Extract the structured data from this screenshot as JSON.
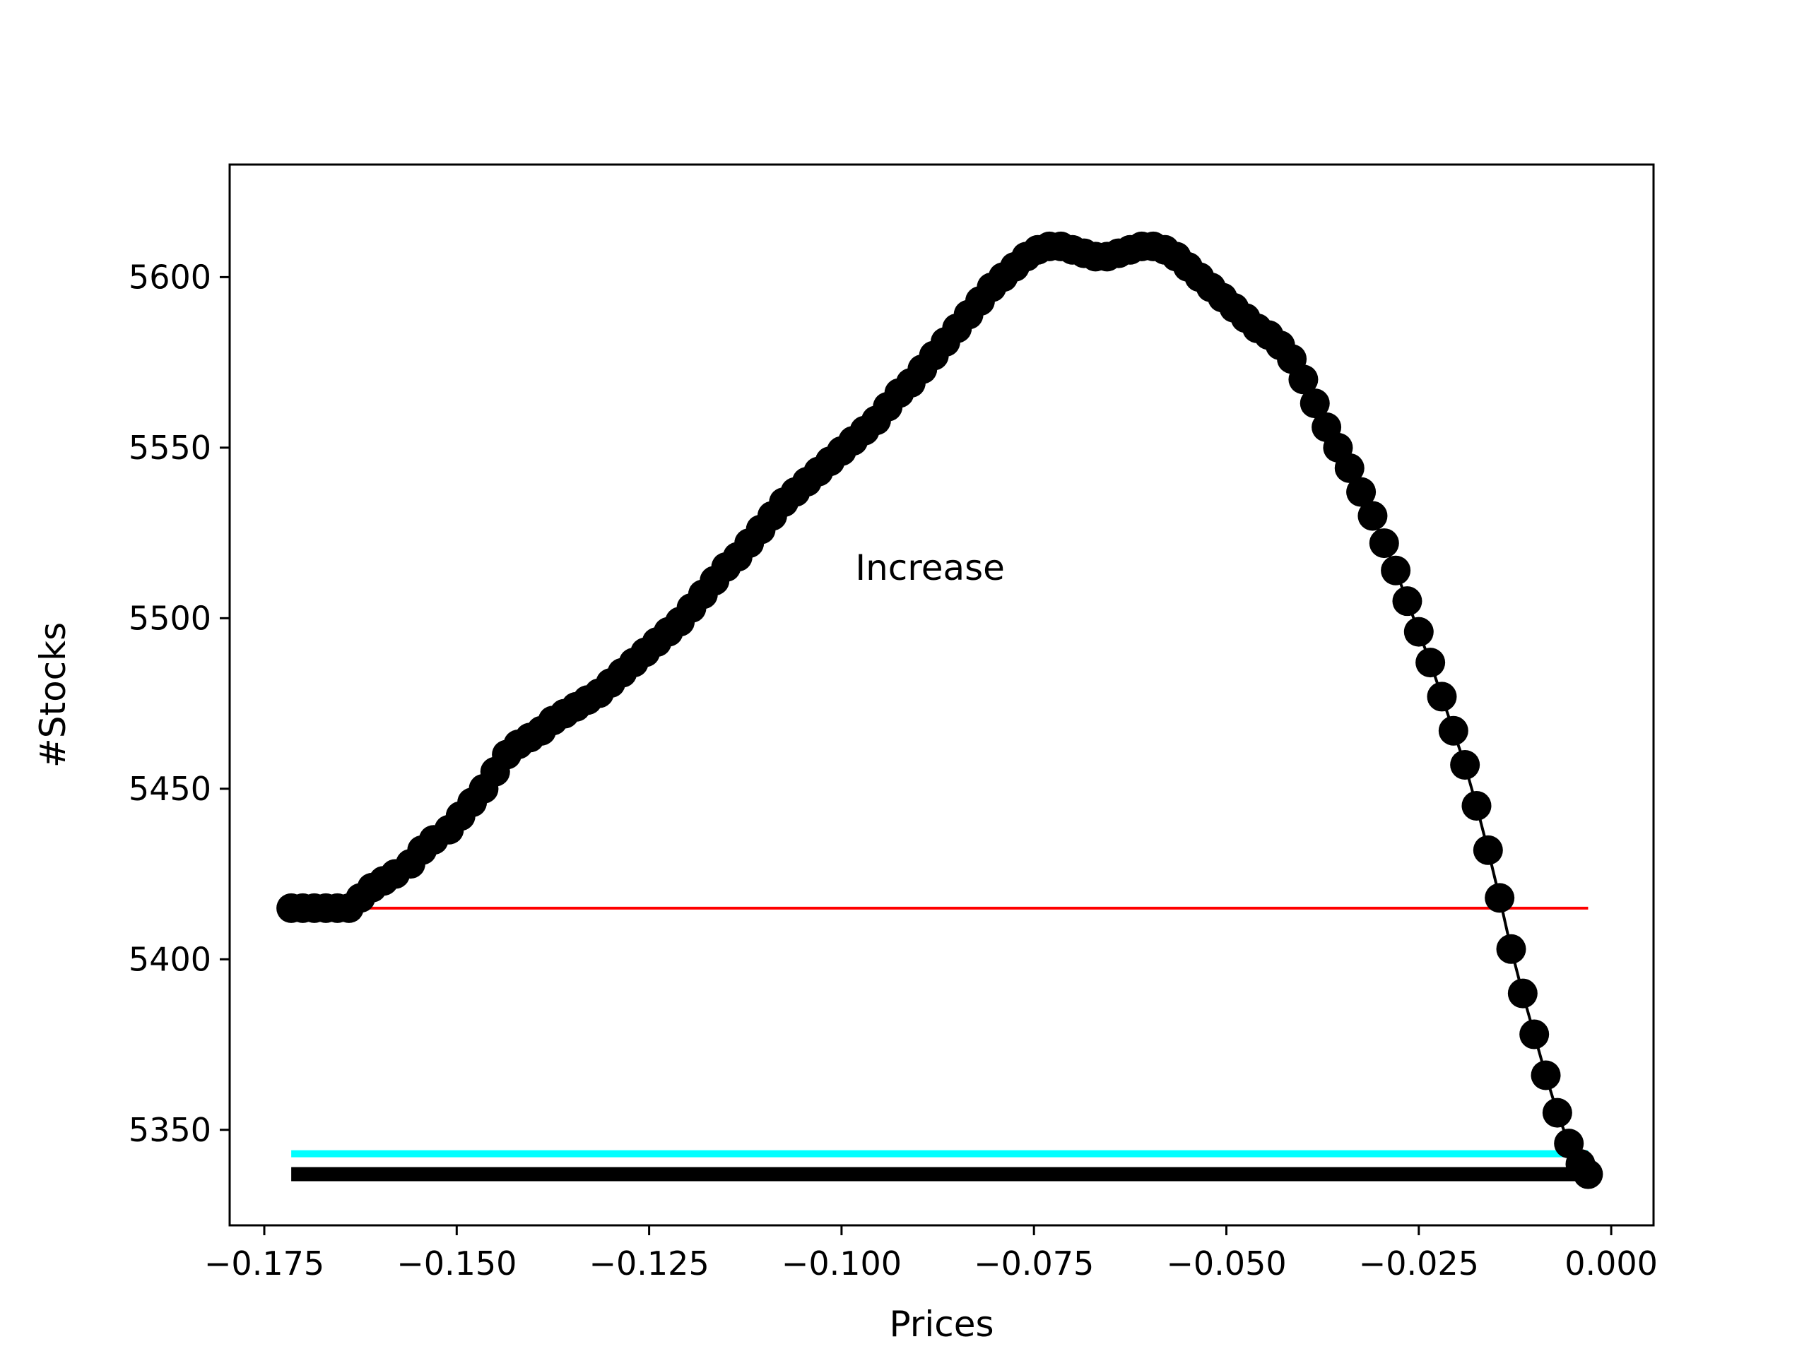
{
  "chart_data": {
    "type": "scatter",
    "title": "",
    "xlabel": "Prices",
    "ylabel": "#Stocks",
    "xlim": [
      -0.1795,
      0.0055
    ],
    "ylim": [
      5322,
      5633
    ],
    "grid": false,
    "legend": "none",
    "annotations": [
      {
        "text": "Increase",
        "x": -0.0885,
        "y": 5515
      }
    ],
    "x_ticks": [
      {
        "value": -0.175,
        "label": "−0.175"
      },
      {
        "value": -0.15,
        "label": "−0.150"
      },
      {
        "value": -0.125,
        "label": "−0.125"
      },
      {
        "value": -0.1,
        "label": "−0.100"
      },
      {
        "value": -0.075,
        "label": "−0.075"
      },
      {
        "value": -0.05,
        "label": "−0.050"
      },
      {
        "value": -0.025,
        "label": "−0.025"
      },
      {
        "value": 0.0,
        "label": "0.000"
      }
    ],
    "y_ticks": [
      {
        "value": 5350,
        "label": "5350"
      },
      {
        "value": 5400,
        "label": "5400"
      },
      {
        "value": 5450,
        "label": "5450"
      },
      {
        "value": 5500,
        "label": "5500"
      },
      {
        "value": 5550,
        "label": "5550"
      },
      {
        "value": 5600,
        "label": "5600"
      }
    ],
    "reference_lines": [
      {
        "y": 5415,
        "x_start": -0.1715,
        "x_end": -0.003,
        "color": "#ff0000",
        "weight": "thin"
      },
      {
        "y": 5343,
        "x_start": -0.1715,
        "x_end": -0.003,
        "color": "#00ffff",
        "weight": "medium"
      },
      {
        "y": 5337,
        "x_start": -0.1715,
        "x_end": -0.003,
        "color": "#000000",
        "weight": "thick"
      }
    ],
    "series": [
      {
        "color": "#000000",
        "x": [
          -0.1715,
          -0.17,
          -0.1685,
          -0.167,
          -0.1655,
          -0.164,
          -0.1625,
          -0.161,
          -0.1595,
          -0.158,
          -0.156,
          -0.1545,
          -0.153,
          -0.151,
          -0.1495,
          -0.148,
          -0.1465,
          -0.145,
          -0.1435,
          -0.142,
          -0.1405,
          -0.139,
          -0.1375,
          -0.136,
          -0.1345,
          -0.133,
          -0.1315,
          -0.13,
          -0.1285,
          -0.127,
          -0.1255,
          -0.124,
          -0.1225,
          -0.121,
          -0.1195,
          -0.118,
          -0.1165,
          -0.115,
          -0.1135,
          -0.112,
          -0.1105,
          -0.109,
          -0.1075,
          -0.106,
          -0.1045,
          -0.103,
          -0.1015,
          -0.1,
          -0.0985,
          -0.097,
          -0.0955,
          -0.094,
          -0.0925,
          -0.091,
          -0.0895,
          -0.088,
          -0.0865,
          -0.085,
          -0.0835,
          -0.082,
          -0.0805,
          -0.079,
          -0.0775,
          -0.076,
          -0.0745,
          -0.073,
          -0.0715,
          -0.07,
          -0.0685,
          -0.067,
          -0.0655,
          -0.064,
          -0.0625,
          -0.061,
          -0.0595,
          -0.058,
          -0.0565,
          -0.055,
          -0.0535,
          -0.052,
          -0.0505,
          -0.049,
          -0.0475,
          -0.046,
          -0.0445,
          -0.043,
          -0.0415,
          -0.04,
          -0.0385,
          -0.037,
          -0.0355,
          -0.034,
          -0.0325,
          -0.031,
          -0.0295,
          -0.028,
          -0.0265,
          -0.025,
          -0.0235,
          -0.022,
          -0.0205,
          -0.019,
          -0.0175,
          -0.016,
          -0.0145,
          -0.013,
          -0.0115,
          -0.01,
          -0.0085,
          -0.007,
          -0.0055,
          -0.004,
          -0.003
        ],
        "y": [
          5415,
          5415,
          5415,
          5415,
          5415,
          5415,
          5418,
          5421,
          5423,
          5425,
          5428,
          5432,
          5435,
          5438,
          5442,
          5446,
          5450,
          5455,
          5460,
          5463,
          5465,
          5467,
          5470,
          5472,
          5474,
          5476,
          5478,
          5481,
          5484,
          5487,
          5490,
          5493,
          5496,
          5499,
          5503,
          5507,
          5511,
          5515,
          5518,
          5522,
          5526,
          5530,
          5534,
          5537,
          5540,
          5543,
          5546,
          5549,
          5552,
          5555,
          5558,
          5562,
          5566,
          5569,
          5573,
          5577,
          5581,
          5585,
          5589,
          5593,
          5597,
          5600,
          5603,
          5606,
          5608,
          5609,
          5609,
          5608,
          5607,
          5606,
          5606,
          5607,
          5608,
          5609,
          5609,
          5608,
          5606,
          5603,
          5600,
          5597,
          5594,
          5591,
          5588,
          5585,
          5583,
          5580,
          5576,
          5570,
          5563,
          5556,
          5550,
          5544,
          5537,
          5530,
          5522,
          5514,
          5505,
          5496,
          5487,
          5477,
          5467,
          5457,
          5445,
          5432,
          5418,
          5403,
          5390,
          5378,
          5366,
          5355,
          5346,
          5340,
          5337
        ]
      }
    ]
  }
}
